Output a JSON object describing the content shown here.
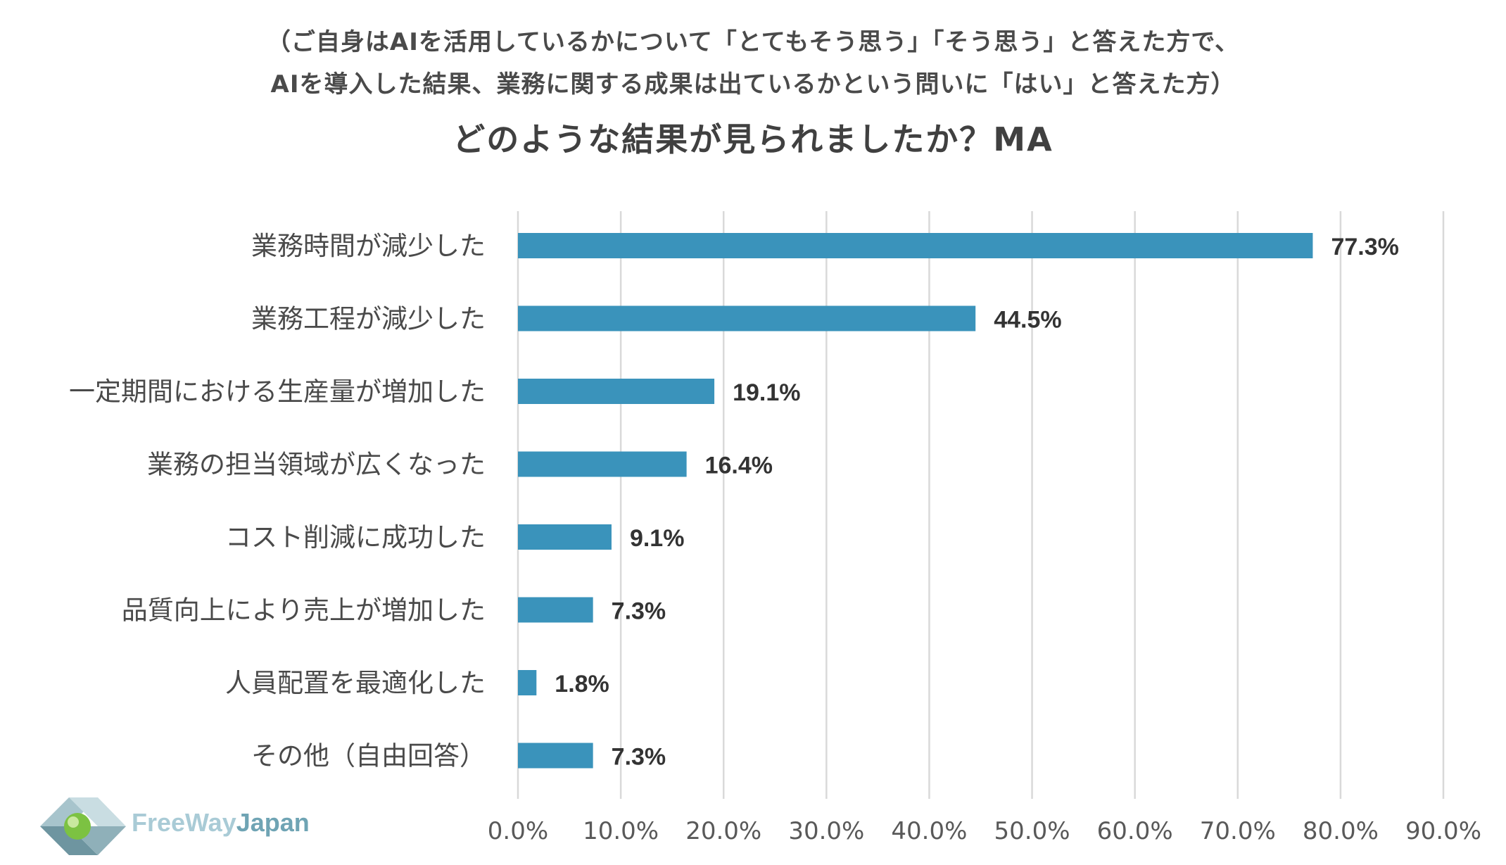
{
  "chart_data": {
    "type": "bar",
    "orientation": "horizontal",
    "subtitle_lines": [
      "（ご自身はAIを活用しているかについて「とてもそう思う」「そう思う」と答えた方で、",
      "AIを導入した結果、業務に関する成果は出ているかという問いに「はい」と答えた方）"
    ],
    "title": "どのような結果が見られましたか？MA",
    "categories": [
      "業務時間が減少した",
      "業務工程が減少した",
      "一定期間における生産量が増加した",
      "業務の担当領域が広くなった",
      "コスト削減に成功した",
      "品質向上により売上が増加した",
      "人員配置を最適化した",
      "その他（自由回答）"
    ],
    "values": [
      77.3,
      44.5,
      19.1,
      16.4,
      9.1,
      7.3,
      1.8,
      7.3
    ],
    "value_labels": [
      "77.3%",
      "44.5%",
      "19.1%",
      "16.4%",
      "9.1%",
      "7.3%",
      "1.8%",
      "7.3%"
    ],
    "xlim": [
      0,
      90
    ],
    "x_ticks": [
      0,
      10,
      20,
      30,
      40,
      50,
      60,
      70,
      80,
      90
    ],
    "x_tick_labels": [
      "0.0%",
      "10.0%",
      "20.0%",
      "30.0%",
      "40.0%",
      "50.0%",
      "60.0%",
      "70.0%",
      "80.0%",
      "90.0%"
    ],
    "grid": true,
    "bar_color": "#3a93bb",
    "grid_color": "#d9d9d9"
  },
  "logo": {
    "text_part1": "FreeWay",
    "text_part2": "Japan"
  }
}
